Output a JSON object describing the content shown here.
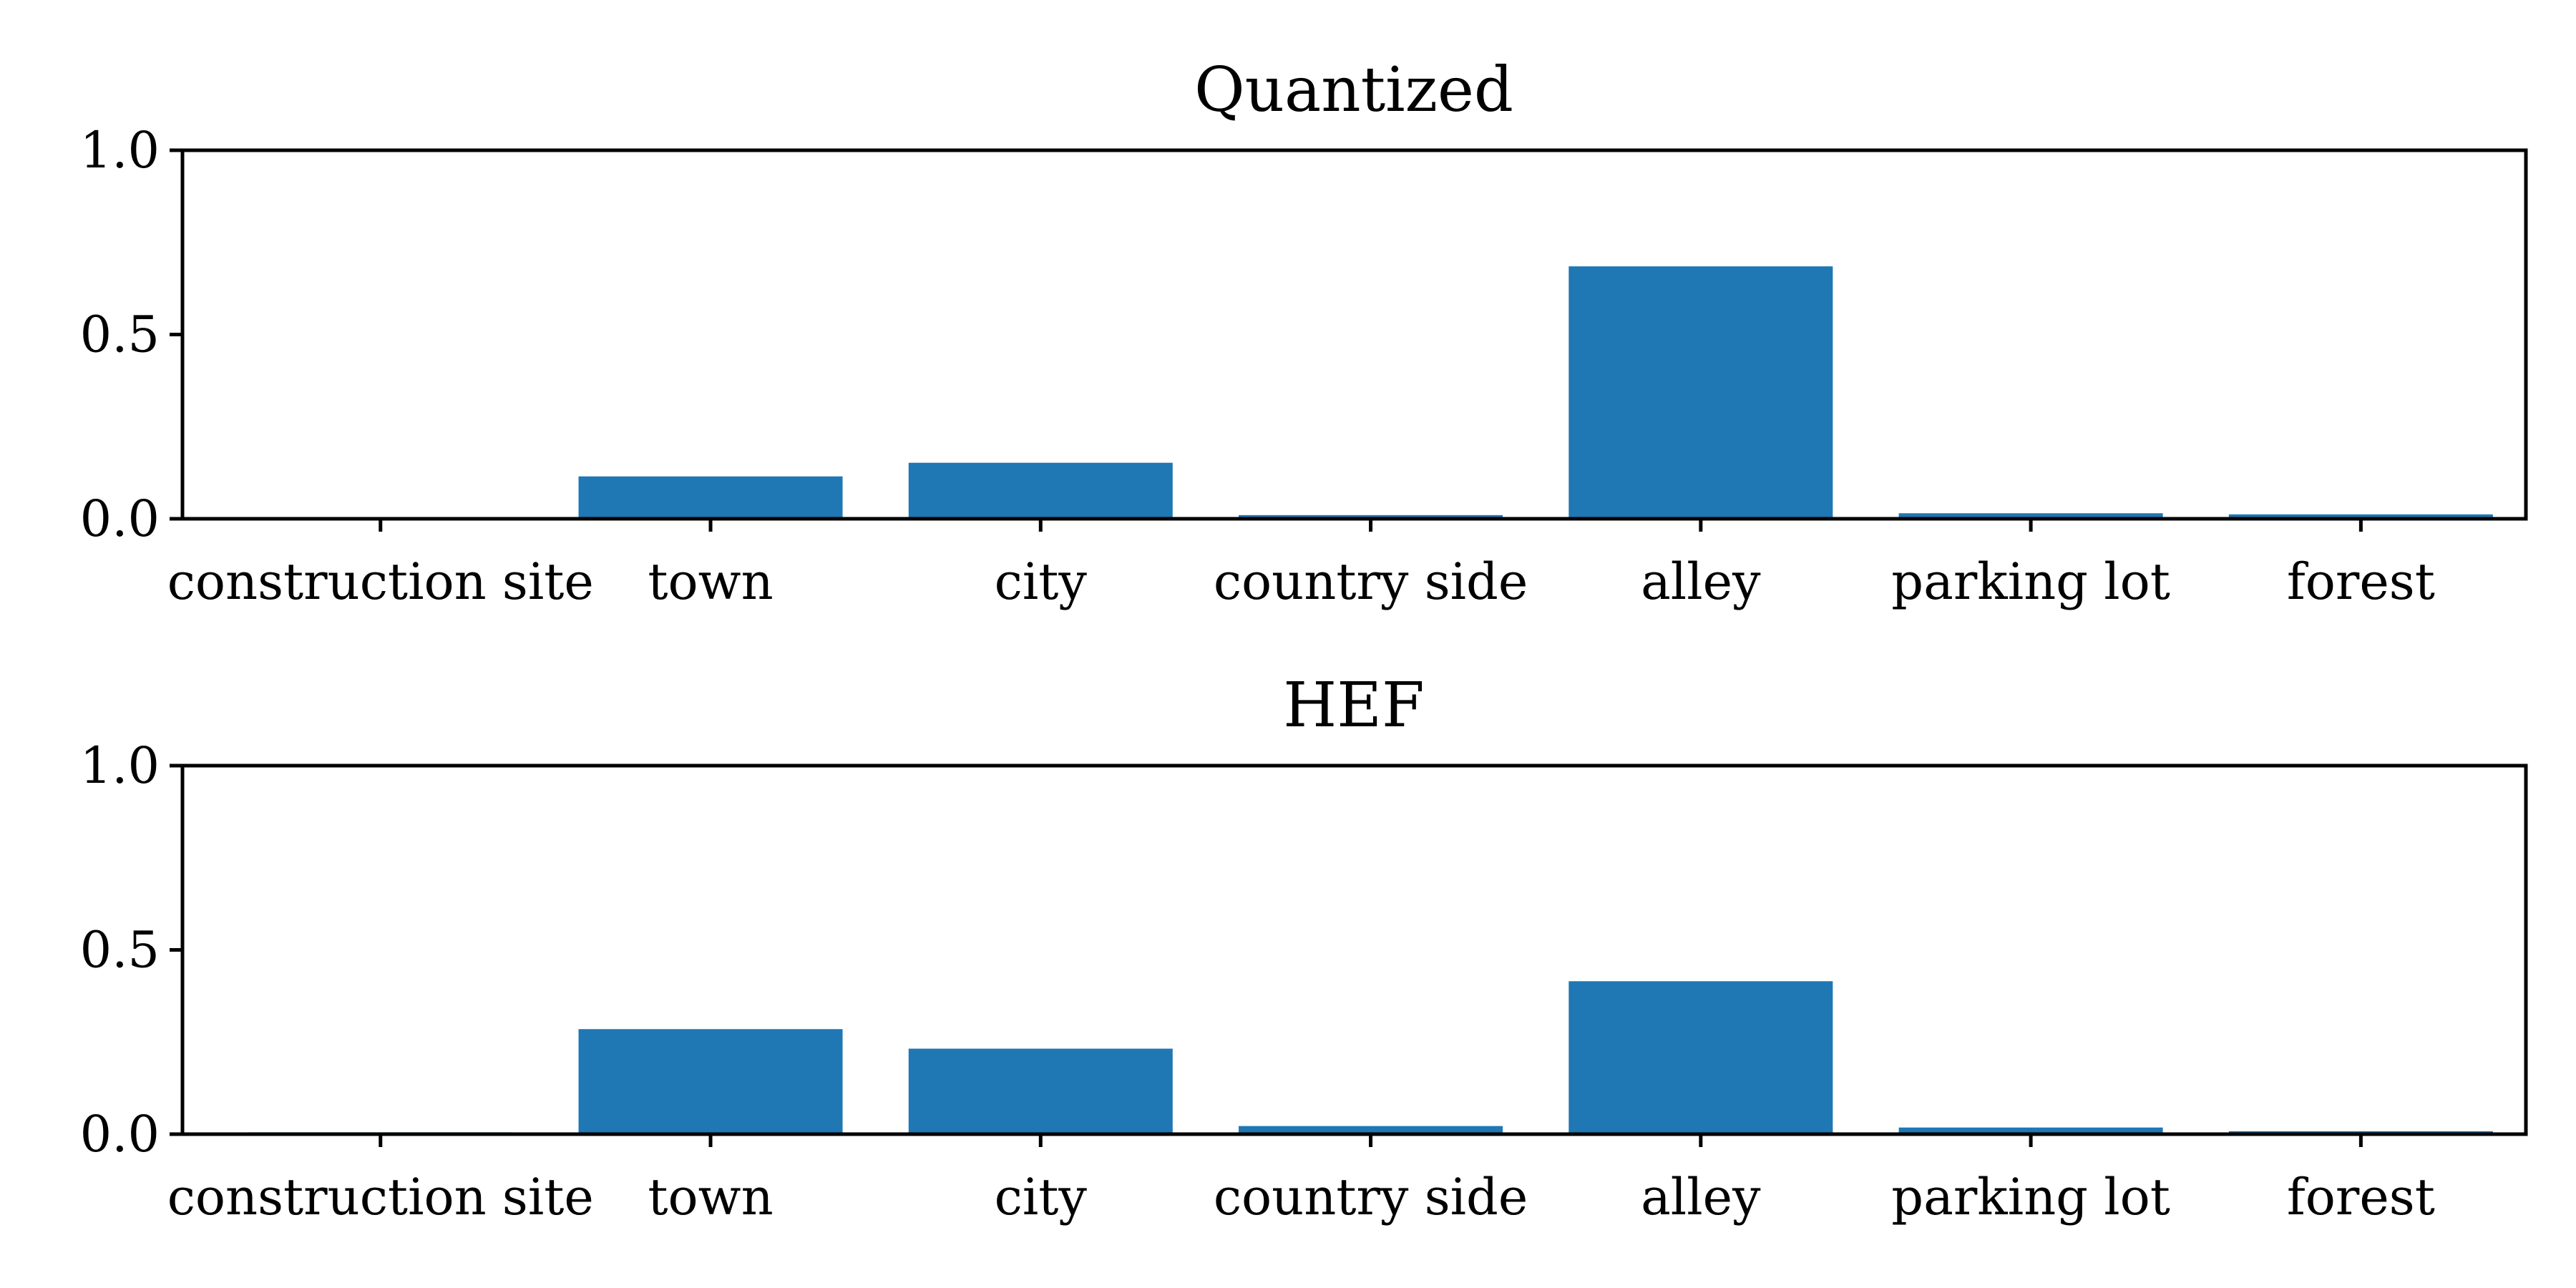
{
  "chart_data": [
    {
      "type": "bar",
      "title": "Quantized",
      "categories": [
        "construction site",
        "town",
        "city",
        "country side",
        "alley",
        "parking lot",
        "forest"
      ],
      "values": [
        0.0,
        0.115,
        0.152,
        0.01,
        0.685,
        0.015,
        0.012
      ],
      "ylim": [
        0,
        1
      ],
      "yticks": [
        "0.0",
        "0.5",
        "1.0"
      ],
      "xlabel": "",
      "ylabel": "",
      "color": "#1f77b4",
      "grid": false
    },
    {
      "type": "bar",
      "title": "HEF",
      "categories": [
        "construction site",
        "town",
        "city",
        "country side",
        "alley",
        "parking lot",
        "forest"
      ],
      "values": [
        0.005,
        0.285,
        0.232,
        0.022,
        0.415,
        0.018,
        0.008
      ],
      "ylim": [
        0,
        1
      ],
      "yticks": [
        "0.0",
        "0.5",
        "1.0"
      ],
      "xlabel": "",
      "ylabel": "",
      "color": "#1f77b4",
      "grid": false
    }
  ]
}
